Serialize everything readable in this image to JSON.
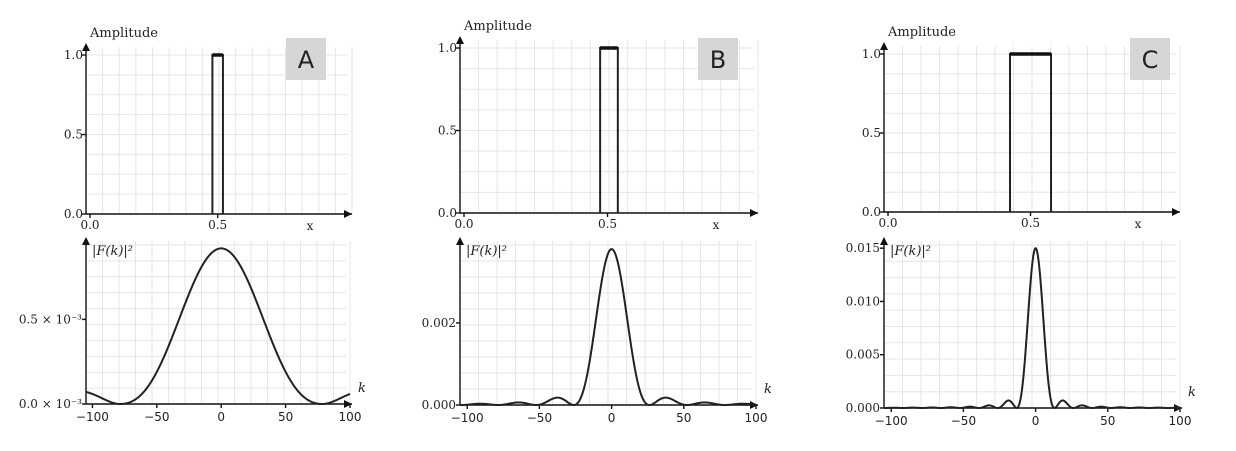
{
  "chart_data": [
    {
      "panel": "A",
      "type": "line",
      "ylabel": "Amplitude",
      "xlabel": "x",
      "xlim": [
        0,
        0.8
      ],
      "ylim": [
        0,
        1.0
      ],
      "xticks": [
        "0.0",
        "0.5"
      ],
      "yticks": [
        "0.0",
        "0.5",
        "1.0"
      ],
      "pulse": {
        "x_start": 0.48,
        "x_end": 0.52,
        "height": 1.0
      },
      "spectrum": {
        "ylabel": "|F(k)|²",
        "xlabel": "k",
        "xlim": [
          -105,
          100
        ],
        "ylim": [
          0,
          0.00094
        ],
        "xticks": [
          "−100",
          "−50",
          "0",
          "50",
          "100"
        ],
        "yticks": [
          "0.0 × 10⁻³",
          "0.5 × 10⁻³"
        ],
        "peak": 0.00092,
        "width": 0.04,
        "sidelobe_boost": 1.8
      }
    },
    {
      "panel": "B",
      "type": "line",
      "ylabel": "Amplitude",
      "xlabel": "x",
      "xlim": [
        0,
        0.8
      ],
      "ylim": [
        0,
        1.0
      ],
      "xticks": [
        "0.0",
        "0.5"
      ],
      "yticks": [
        "0.0",
        "0.5",
        "1.0"
      ],
      "pulse": {
        "x_start": 0.475,
        "x_end": 0.535,
        "height": 1.0
      },
      "spectrum": {
        "ylabel": "|F(k)|²",
        "xlabel": "k",
        "xlim": [
          -105,
          100
        ],
        "ylim": [
          0,
          0.0039
        ],
        "xticks": [
          "−100",
          "−50",
          "0",
          "50",
          "100"
        ],
        "yticks": [
          "0.000",
          "0.002"
        ],
        "peak": 0.0038,
        "width": 0.12,
        "sidelobe_boost": 1.0
      }
    },
    {
      "panel": "C",
      "type": "line",
      "ylabel": "Amplitude",
      "xlabel": "x",
      "xlim": [
        0,
        0.8
      ],
      "ylim": [
        0,
        1.0
      ],
      "xticks": [
        "0.0",
        "0.5"
      ],
      "yticks": [
        "0.0",
        "0.5",
        "1.0"
      ],
      "pulse": {
        "x_start": 0.43,
        "x_end": 0.57,
        "height": 1.0
      },
      "spectrum": {
        "ylabel": "|F(k)|²",
        "xlabel": "k",
        "xlim": [
          -105,
          100
        ],
        "ylim": [
          0,
          0.0153
        ],
        "xticks": [
          "−100",
          "−50",
          "0",
          "50",
          "100"
        ],
        "yticks": [
          "0.000",
          "0.005",
          "0.010",
          "0.015"
        ],
        "peak": 0.015,
        "width": 0.24,
        "sidelobe_boost": 1.0
      }
    }
  ]
}
